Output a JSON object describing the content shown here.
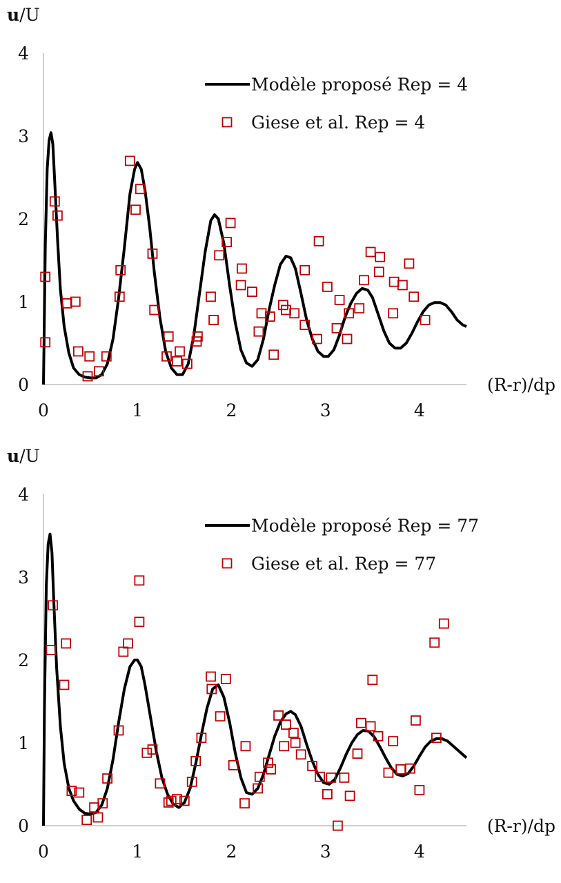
{
  "chart_data": [
    {
      "type": "line",
      "ylabel_bold": "u",
      "ylabel_rest": "/U",
      "xlabel": "(R-r)/dp",
      "xlim": [
        0,
        4.5
      ],
      "ylim": [
        0,
        4
      ],
      "xticks": [
        "0",
        "1",
        "2",
        "3",
        "4"
      ],
      "yticks": [
        "0",
        "1",
        "2",
        "3",
        "4"
      ],
      "grid": false,
      "legend_position": "top-right",
      "series": [
        {
          "name": "Modèle proposé Rep = 4",
          "kind": "line",
          "color": "#000000",
          "x": [
            0.0,
            0.02,
            0.04,
            0.06,
            0.08,
            0.1,
            0.12,
            0.15,
            0.18,
            0.22,
            0.27,
            0.32,
            0.38,
            0.44,
            0.5,
            0.56,
            0.62,
            0.68,
            0.74,
            0.8,
            0.86,
            0.92,
            0.97,
            1.0,
            1.04,
            1.08,
            1.13,
            1.18,
            1.24,
            1.3,
            1.36,
            1.42,
            1.48,
            1.54,
            1.6,
            1.66,
            1.72,
            1.78,
            1.82,
            1.86,
            1.92,
            1.98,
            2.04,
            2.1,
            2.16,
            2.22,
            2.28,
            2.34,
            2.4,
            2.46,
            2.52,
            2.58,
            2.63,
            2.68,
            2.74,
            2.8,
            2.86,
            2.92,
            2.98,
            3.03,
            3.09,
            3.15,
            3.21,
            3.27,
            3.33,
            3.39,
            3.45,
            3.5,
            3.56,
            3.62,
            3.68,
            3.74,
            3.8,
            3.86,
            3.92,
            3.98,
            4.04,
            4.1,
            4.16,
            4.22,
            4.28,
            4.34,
            4.4,
            4.46,
            4.5
          ],
          "y": [
            0.0,
            1.7,
            2.6,
            2.95,
            3.04,
            2.9,
            2.45,
            1.75,
            1.15,
            0.7,
            0.38,
            0.2,
            0.12,
            0.09,
            0.08,
            0.08,
            0.12,
            0.25,
            0.55,
            1.05,
            1.65,
            2.3,
            2.6,
            2.68,
            2.6,
            2.35,
            1.9,
            1.35,
            0.8,
            0.4,
            0.2,
            0.12,
            0.12,
            0.25,
            0.6,
            1.1,
            1.6,
            1.98,
            2.05,
            2.0,
            1.7,
            1.2,
            0.75,
            0.42,
            0.26,
            0.22,
            0.3,
            0.55,
            0.9,
            1.2,
            1.45,
            1.55,
            1.53,
            1.4,
            1.1,
            0.78,
            0.55,
            0.4,
            0.34,
            0.34,
            0.42,
            0.6,
            0.82,
            0.98,
            1.1,
            1.16,
            1.14,
            1.05,
            0.85,
            0.65,
            0.5,
            0.44,
            0.44,
            0.5,
            0.62,
            0.76,
            0.88,
            0.96,
            0.99,
            0.99,
            0.96,
            0.88,
            0.78,
            0.72,
            0.7
          ]
        },
        {
          "name": "Giese et al. Rep = 4",
          "kind": "scatter",
          "marker": "square",
          "color": "#c00000",
          "x": [
            0.02,
            0.02,
            0.12,
            0.15,
            0.25,
            0.34,
            0.37,
            0.47,
            0.49,
            0.59,
            0.67,
            0.81,
            0.82,
            0.92,
            0.98,
            1.03,
            1.16,
            1.18,
            1.31,
            1.33,
            1.42,
            1.45,
            1.53,
            1.63,
            1.64,
            1.78,
            1.81,
            1.87,
            1.95,
            1.99,
            2.1,
            2.11,
            2.22,
            2.29,
            2.32,
            2.41,
            2.45,
            2.55,
            2.58,
            2.67,
            2.78,
            2.78,
            2.91,
            2.93,
            3.02,
            3.12,
            3.15,
            3.23,
            3.25,
            3.36,
            3.41,
            3.48,
            3.57,
            3.58,
            3.72,
            3.73,
            3.82,
            3.89,
            3.94,
            4.06
          ],
          "y": [
            0.51,
            1.3,
            2.21,
            2.04,
            0.98,
            1.0,
            0.4,
            0.1,
            0.34,
            0.16,
            0.34,
            1.06,
            1.38,
            2.7,
            2.11,
            2.36,
            1.58,
            0.9,
            0.34,
            0.58,
            0.28,
            0.4,
            0.25,
            0.52,
            0.58,
            1.06,
            0.78,
            1.56,
            1.72,
            1.95,
            1.2,
            1.4,
            1.12,
            0.64,
            0.86,
            0.82,
            0.36,
            0.96,
            0.9,
            0.86,
            0.72,
            1.38,
            0.55,
            1.73,
            1.18,
            0.68,
            1.02,
            0.55,
            0.86,
            0.92,
            1.26,
            1.6,
            1.36,
            1.54,
            0.86,
            1.24,
            1.2,
            1.46,
            1.06,
            0.78
          ]
        }
      ]
    },
    {
      "type": "line",
      "ylabel_bold": "u",
      "ylabel_rest": "/U",
      "xlabel": "(R-r)/dp",
      "xlim": [
        0,
        4.5
      ],
      "ylim": [
        0,
        4
      ],
      "xticks": [
        "0",
        "1",
        "2",
        "3",
        "4"
      ],
      "yticks": [
        "0",
        "1",
        "2",
        "3",
        "4"
      ],
      "grid": false,
      "legend_position": "top-right",
      "series": [
        {
          "name": "Modèle proposé Rep = 77",
          "kind": "line",
          "color": "#000000",
          "x": [
            0.0,
            0.01,
            0.03,
            0.05,
            0.07,
            0.09,
            0.11,
            0.14,
            0.18,
            0.22,
            0.27,
            0.32,
            0.38,
            0.44,
            0.5,
            0.56,
            0.62,
            0.68,
            0.74,
            0.8,
            0.86,
            0.92,
            0.97,
            1.0,
            1.04,
            1.08,
            1.14,
            1.2,
            1.26,
            1.32,
            1.38,
            1.44,
            1.5,
            1.56,
            1.62,
            1.68,
            1.74,
            1.8,
            1.86,
            1.92,
            1.98,
            2.04,
            2.1,
            2.16,
            2.22,
            2.28,
            2.34,
            2.4,
            2.46,
            2.52,
            2.58,
            2.63,
            2.68,
            2.74,
            2.8,
            2.86,
            2.92,
            2.98,
            3.04,
            3.1,
            3.16,
            3.22,
            3.28,
            3.34,
            3.4,
            3.46,
            3.52,
            3.58,
            3.64,
            3.7,
            3.76,
            3.82,
            3.88,
            3.94,
            4.0,
            4.06,
            4.12,
            4.18,
            4.24,
            4.3,
            4.36,
            4.42,
            4.48,
            4.5
          ],
          "y": [
            0.0,
            1.4,
            2.9,
            3.4,
            3.52,
            3.3,
            2.7,
            1.9,
            1.2,
            0.75,
            0.45,
            0.3,
            0.2,
            0.15,
            0.14,
            0.16,
            0.25,
            0.45,
            0.8,
            1.25,
            1.65,
            1.92,
            2.0,
            2.0,
            1.92,
            1.7,
            1.3,
            0.9,
            0.58,
            0.38,
            0.26,
            0.22,
            0.28,
            0.45,
            0.75,
            1.1,
            1.42,
            1.65,
            1.7,
            1.55,
            1.25,
            0.88,
            0.58,
            0.4,
            0.38,
            0.45,
            0.62,
            0.85,
            1.08,
            1.25,
            1.35,
            1.38,
            1.34,
            1.2,
            0.98,
            0.78,
            0.62,
            0.52,
            0.5,
            0.56,
            0.7,
            0.86,
            1.0,
            1.1,
            1.15,
            1.14,
            1.07,
            0.95,
            0.82,
            0.7,
            0.62,
            0.6,
            0.63,
            0.72,
            0.84,
            0.95,
            1.02,
            1.05,
            1.05,
            1.02,
            0.96,
            0.9,
            0.84,
            0.82
          ]
        },
        {
          "name": "Giese et al. Rep = 77",
          "kind": "scatter",
          "marker": "square",
          "color": "#c00000",
          "x": [
            0.08,
            0.1,
            0.22,
            0.24,
            0.3,
            0.38,
            0.46,
            0.54,
            0.58,
            0.63,
            0.68,
            0.8,
            0.85,
            0.9,
            1.02,
            1.02,
            1.1,
            1.16,
            1.24,
            1.33,
            1.36,
            1.42,
            1.5,
            1.58,
            1.62,
            1.68,
            1.78,
            1.79,
            1.88,
            1.94,
            2.02,
            2.14,
            2.15,
            2.28,
            2.3,
            2.39,
            2.42,
            2.5,
            2.56,
            2.58,
            2.66,
            2.68,
            2.74,
            2.86,
            2.94,
            3.02,
            3.06,
            3.13,
            3.2,
            3.26,
            3.34,
            3.38,
            3.48,
            3.5,
            3.56,
            3.67,
            3.72,
            3.8,
            3.9,
            3.96,
            4.0,
            4.16,
            4.18,
            4.26
          ],
          "y": [
            2.12,
            2.66,
            1.7,
            2.2,
            0.42,
            0.4,
            0.07,
            0.22,
            0.1,
            0.27,
            0.57,
            1.15,
            2.1,
            2.2,
            2.46,
            2.96,
            0.88,
            0.92,
            0.51,
            0.28,
            0.3,
            0.32,
            0.3,
            0.53,
            0.78,
            1.06,
            1.8,
            1.65,
            1.32,
            1.77,
            0.73,
            0.27,
            0.96,
            0.45,
            0.59,
            0.76,
            0.68,
            1.33,
            0.96,
            1.22,
            1.12,
            1.0,
            0.86,
            0.72,
            0.59,
            0.38,
            0.58,
            0.0,
            0.58,
            0.36,
            0.87,
            1.24,
            1.2,
            1.76,
            1.08,
            0.64,
            1.02,
            0.68,
            0.69,
            1.27,
            0.43,
            2.21,
            1.06,
            2.44
          ]
        }
      ]
    }
  ]
}
